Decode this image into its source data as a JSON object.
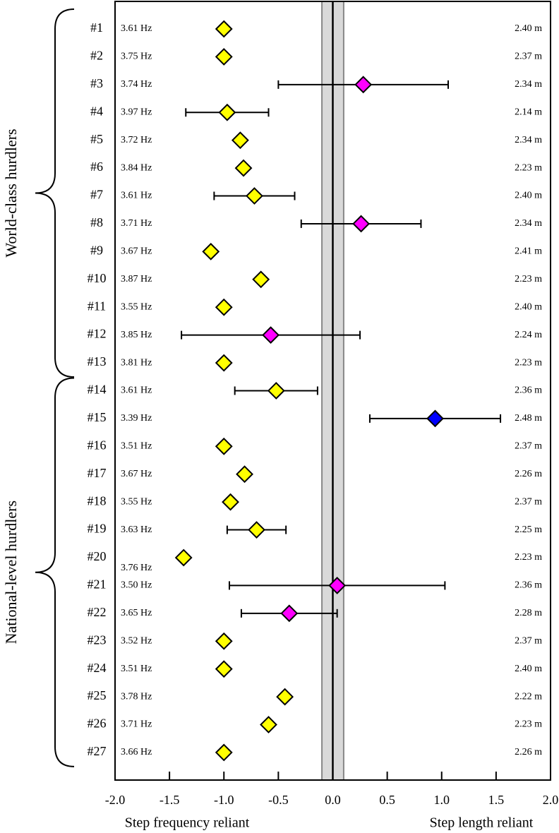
{
  "chart_data": {
    "type": "forest",
    "categories": [
      "#1",
      "#2",
      "#3",
      "#4",
      "#5",
      "#6",
      "#7",
      "#8",
      "#9",
      "#10",
      "#11",
      "#12",
      "#13",
      "#14",
      "#15",
      "#16",
      "#17",
      "#18",
      "#19",
      "#20",
      "#21",
      "#22",
      "#23",
      "#24",
      "#25",
      "#26",
      "#27"
    ],
    "values": [
      -1.0,
      -1.0,
      0.28,
      -0.97,
      -0.85,
      -0.82,
      -0.72,
      0.26,
      -1.12,
      -0.66,
      -1.0,
      -0.57,
      -1.0,
      -0.52,
      0.94,
      -1.0,
      -0.81,
      -0.94,
      -0.7,
      -1.37,
      0.04,
      -0.4,
      -1.0,
      -1.0,
      -0.44,
      -0.59,
      -1.0
    ],
    "errors": [
      null,
      null,
      0.78,
      0.38,
      null,
      null,
      0.37,
      0.55,
      null,
      null,
      null,
      0.82,
      null,
      0.38,
      0.6,
      null,
      null,
      null,
      0.27,
      null,
      0.99,
      0.44,
      null,
      null,
      null,
      null,
      null
    ],
    "colors": [
      "#ffff00",
      "#ffff00",
      "#ff00ff",
      "#ffff00",
      "#ffff00",
      "#ffff00",
      "#ffff00",
      "#ff00ff",
      "#ffff00",
      "#ffff00",
      "#ffff00",
      "#ff00ff",
      "#ffff00",
      "#ffff00",
      "#0000ff",
      "#ffff00",
      "#ffff00",
      "#ffff00",
      "#ffff00",
      "#ffff00",
      "#ff00ff",
      "#ff00ff",
      "#ffff00",
      "#ffff00",
      "#ffff00",
      "#ffff00",
      "#ffff00"
    ],
    "frequency_labels": [
      "3.61 Hz",
      "3.75 Hz",
      "3.74 Hz",
      "3.97 Hz",
      "3.72 Hz",
      "3.84 Hz",
      "3.61 Hz",
      "3.71 Hz",
      "3.67 Hz",
      "3.87 Hz",
      "3.55 Hz",
      "3.85 Hz",
      "3.81 Hz",
      "3.61 Hz",
      "3.39 Hz",
      "3.51 Hz",
      "3.67 Hz",
      "3.55 Hz",
      "3.63 Hz",
      "3.76 Hz",
      "3.50 Hz",
      "3.65 Hz",
      "3.52 Hz",
      "3.51 Hz",
      "3.78 Hz",
      "3.71 Hz",
      "3.66 Hz"
    ],
    "length_labels": [
      "2.40 m",
      "2.37 m",
      "2.34 m",
      "2.14 m",
      "2.34 m",
      "2.23 m",
      "2.40 m",
      "2.34 m",
      "2.41 m",
      "2.23 m",
      "2.40 m",
      "2.24 m",
      "2.23 m",
      "2.36 m",
      "2.48 m",
      "2.37 m",
      "2.26 m",
      "2.37 m",
      "2.25 m",
      "2.23 m",
      "2.36 m",
      "2.28 m",
      "2.37 m",
      "2.40 m",
      "2.22 m",
      "2.23 m",
      "2.26 m"
    ],
    "group_labels": [
      "World-class hurdlers",
      "National-level hurdlers"
    ],
    "band": [
      -0.1,
      0.1
    ],
    "xlim": [
      -2.0,
      2.0
    ],
    "xticks": [
      {
        "value": -2.0,
        "label": "-2.0"
      },
      {
        "value": -1.5,
        "label": "-1.5"
      },
      {
        "value": -1.0,
        "label": "-1.0"
      },
      {
        "value": -0.5,
        "label": "-0.5"
      },
      {
        "value": 0,
        "label": "0.0"
      },
      {
        "value": 0.5,
        "label": "0.5"
      },
      {
        "value": 1.0,
        "label": "1.0"
      },
      {
        "value": 1.5,
        "label": "1.5"
      },
      {
        "value": 2.0,
        "label": "2.0"
      }
    ],
    "x_label_left": "Step frequency reliant",
    "x_label_right": "Step length reliant"
  }
}
